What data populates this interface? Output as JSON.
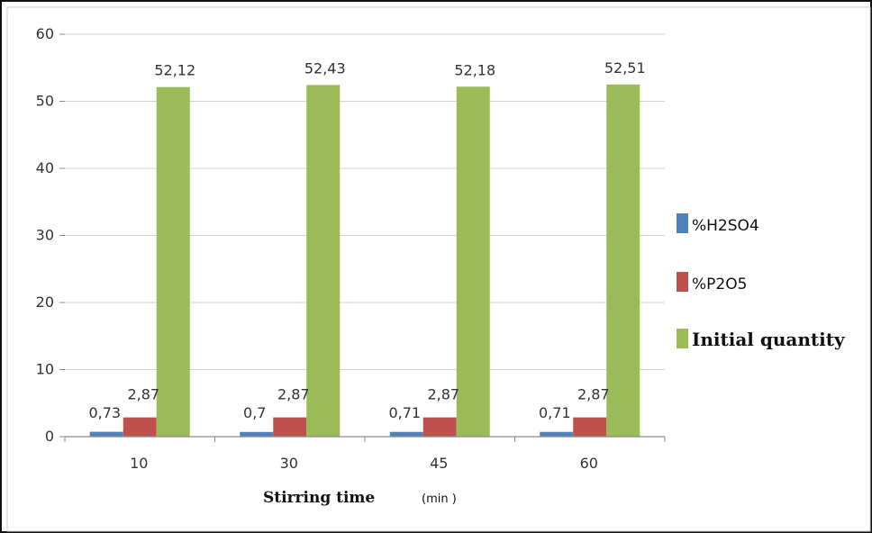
{
  "chart_data": {
    "type": "bar",
    "categories": [
      "10",
      "30",
      "45",
      "60"
    ],
    "series": [
      {
        "name": "%H2SO4",
        "values": [
          0.73,
          0.7,
          0.71,
          0.71
        ],
        "labels": [
          "0,73",
          "0,7",
          "0,71",
          "0,71"
        ],
        "color": "#4F81BD"
      },
      {
        "name": "%P2O5",
        "values": [
          2.87,
          2.87,
          2.87,
          2.87
        ],
        "labels": [
          "2,87",
          "2,87",
          "2,87",
          "2,87"
        ],
        "color": "#C0504D"
      },
      {
        "name": "Initial quantity",
        "values": [
          52.12,
          52.43,
          52.18,
          52.51
        ],
        "labels": [
          "52,12",
          "52,43",
          "52,18",
          "52,51"
        ],
        "color": "#9BBB59"
      }
    ],
    "xlabel": "Stirring time",
    "xunit": "(min )",
    "ylim": [
      0,
      60
    ],
    "yticks": [
      "0",
      "10",
      "20",
      "30",
      "40",
      "50",
      "60"
    ],
    "grid": true,
    "legend": "right"
  }
}
